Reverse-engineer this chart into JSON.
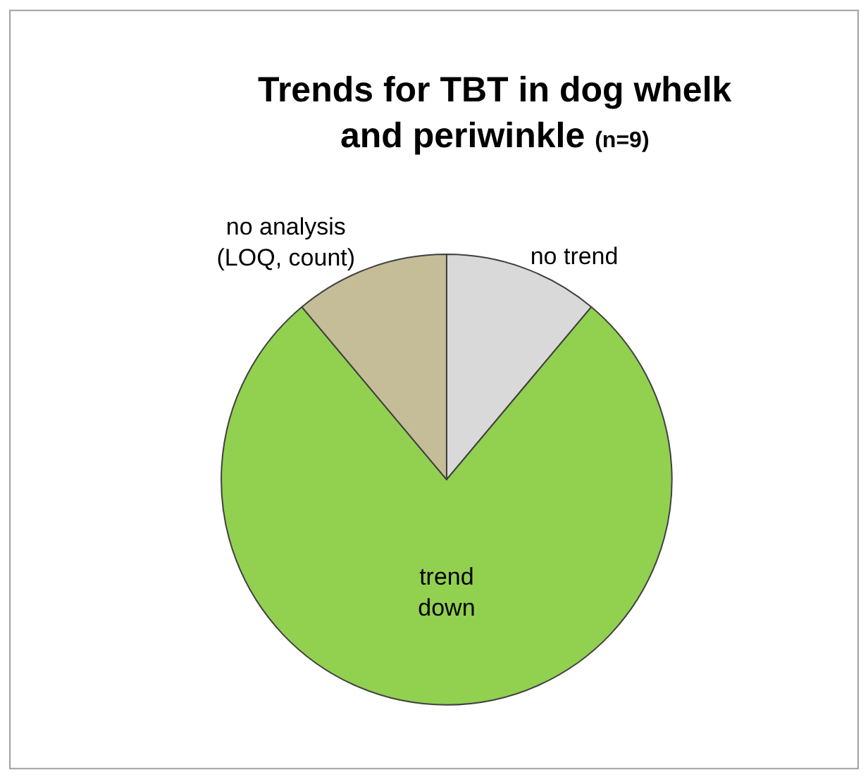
{
  "chart_data": {
    "type": "pie",
    "title": "Trends for TBT in dog whelk\nand periwinkle",
    "subtitle": "(n=9)",
    "categories": [
      "no trend",
      "trend\ndown",
      "no analysis\n(LOQ, count)"
    ],
    "values": [
      11.1,
      77.8,
      11.1
    ],
    "colors": [
      "#d9d9d9",
      "#92d050",
      "#c4bd97"
    ],
    "legend": false
  }
}
